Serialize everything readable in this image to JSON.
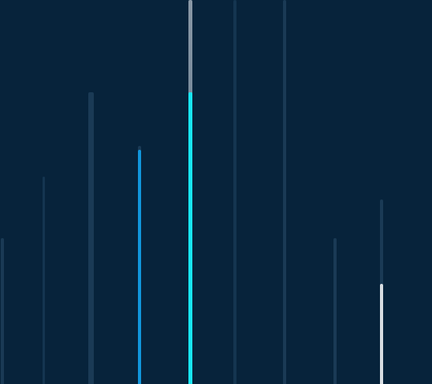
{
  "visualizer": {
    "colors": {
      "background": "#07233b",
      "track": "#1a3a55",
      "track_dim": "#143550",
      "accent_cyan": "#18e6f5",
      "accent_blue": "#1196dc",
      "highlight_white": "#d8dde2",
      "cap_gray": "#8a98a6"
    },
    "bars": [
      {
        "name": "bar-1",
        "level": 0.38,
        "fill": 0.0,
        "style": "track"
      },
      {
        "name": "bar-2",
        "level": 0.54,
        "fill": 0.0,
        "style": "track_dim"
      },
      {
        "name": "bar-3",
        "level": 0.76,
        "fill": 0.0,
        "style": "track"
      },
      {
        "name": "bar-4",
        "level": 0.62,
        "fill": 0.61,
        "style": "accent_blue"
      },
      {
        "name": "bar-5",
        "level": 1.0,
        "fill": 0.76,
        "style": "accent_cyan"
      },
      {
        "name": "bar-6",
        "level": 1.0,
        "fill": 0.0,
        "style": "track_dim"
      },
      {
        "name": "bar-7",
        "level": 1.0,
        "fill": 0.0,
        "style": "track"
      },
      {
        "name": "bar-8",
        "level": 0.38,
        "fill": 0.0,
        "style": "track"
      },
      {
        "name": "bar-9",
        "level": 0.48,
        "fill": 0.26,
        "style": "highlight_white"
      }
    ]
  }
}
